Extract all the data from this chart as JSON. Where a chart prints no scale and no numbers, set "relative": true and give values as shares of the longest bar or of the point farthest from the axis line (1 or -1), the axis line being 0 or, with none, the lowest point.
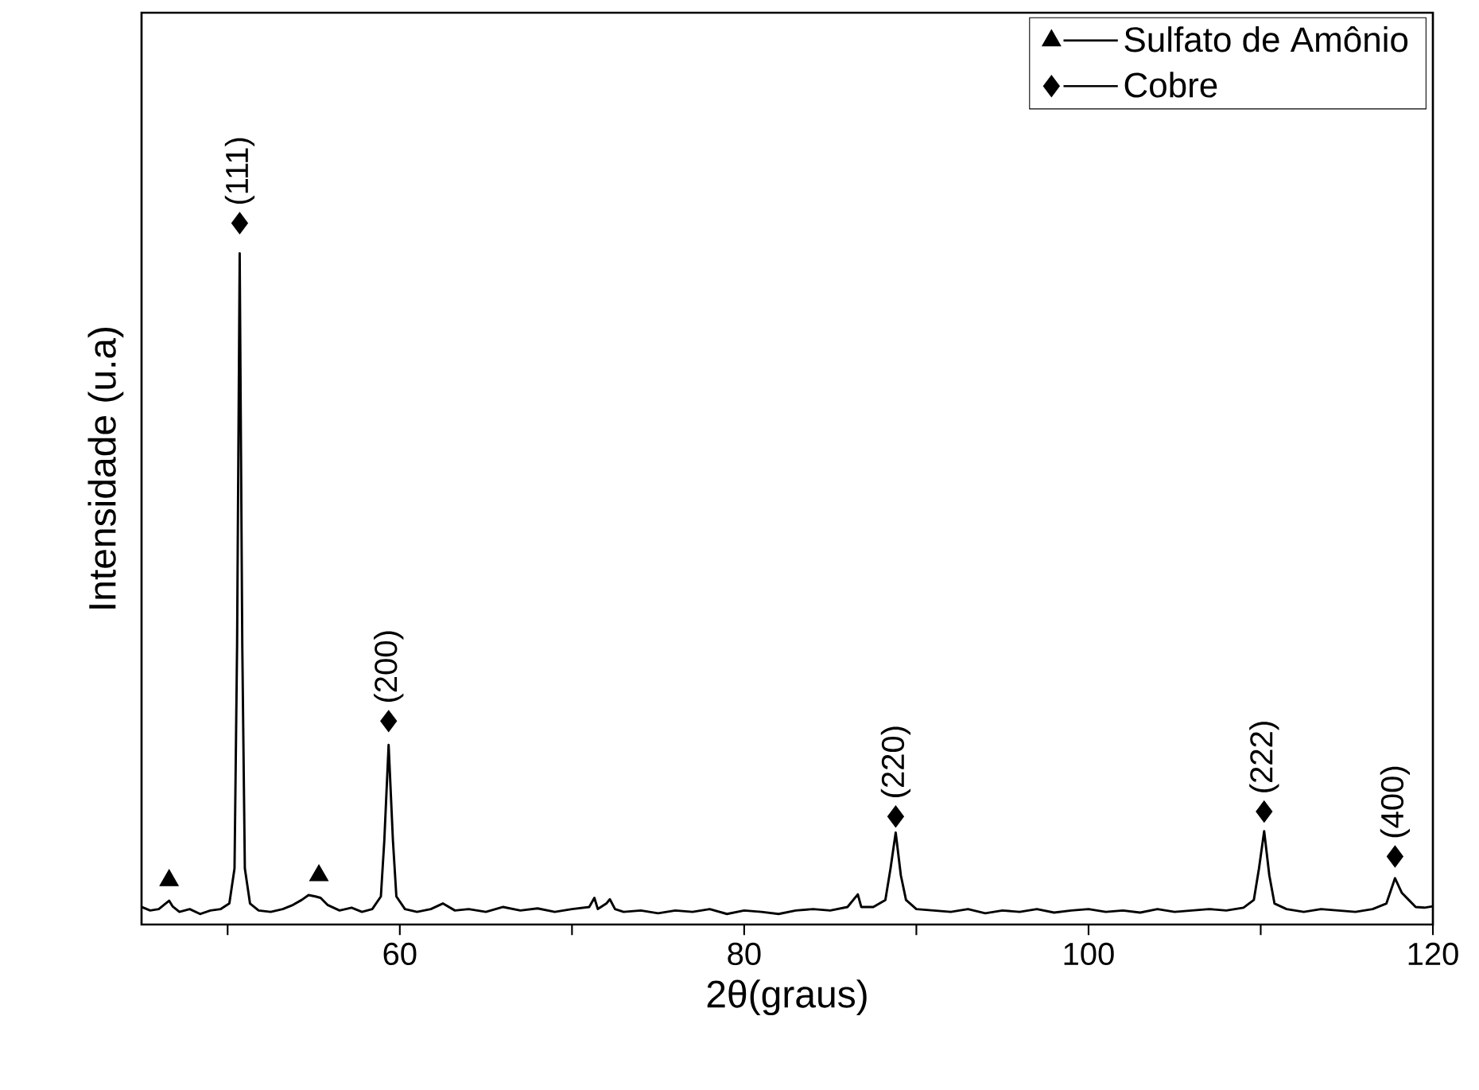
{
  "chart_data": {
    "type": "line",
    "xlabel": "2θ(graus)",
    "ylabel": "Intensidade (u.a)",
    "relative": true,
    "xlim": [
      45,
      120
    ],
    "xticks": [
      {
        "value": 50,
        "label": null
      },
      60,
      {
        "value": 70,
        "label": null
      },
      80,
      {
        "value": 90,
        "label": null
      },
      100,
      {
        "value": 110,
        "label": null
      },
      120
    ],
    "legend": "top right",
    "series": [
      {
        "color": "#000000",
        "marker": "none",
        "x": [
          45,
          45.5,
          46,
          46.4,
          46.6,
          46.8,
          47.2,
          47.8,
          48.4,
          49,
          49.6,
          50.1,
          50.4,
          50.55,
          50.7,
          50.85,
          51.0,
          51.3,
          51.8,
          52.5,
          53.2,
          53.8,
          54.3,
          54.7,
          55.1,
          55.4,
          55.8,
          56.5,
          57.2,
          57.8,
          58.4,
          58.9,
          59.1,
          59.35,
          59.6,
          59.8,
          60.3,
          61,
          61.8,
          62.5,
          63.2,
          64,
          65,
          66,
          67,
          68,
          69,
          70,
          71,
          71.3,
          71.5,
          72,
          72.2,
          72.5,
          73,
          74,
          75,
          76,
          77,
          78,
          79,
          80,
          81,
          82,
          83,
          84,
          85,
          86,
          86.6,
          86.8,
          87.5,
          88.2,
          88.5,
          88.8,
          89.1,
          89.4,
          90,
          91,
          92,
          93,
          94,
          95,
          96,
          97,
          98,
          99,
          100,
          101,
          102,
          103,
          104,
          105,
          106,
          107,
          108,
          109,
          109.6,
          109.9,
          110.2,
          110.5,
          110.8,
          111.5,
          112.5,
          113.5,
          114.5,
          115.5,
          116.5,
          117.3,
          117.8,
          118.2,
          118.6,
          119,
          119.5,
          120
        ],
        "values": [
          0.025,
          0.02,
          0.022,
          0.03,
          0.034,
          0.026,
          0.018,
          0.022,
          0.015,
          0.02,
          0.022,
          0.03,
          0.08,
          0.4,
          0.957,
          0.4,
          0.08,
          0.03,
          0.02,
          0.018,
          0.022,
          0.028,
          0.035,
          0.042,
          0.04,
          0.038,
          0.028,
          0.02,
          0.024,
          0.018,
          0.022,
          0.04,
          0.12,
          0.256,
          0.12,
          0.04,
          0.022,
          0.018,
          0.022,
          0.03,
          0.02,
          0.022,
          0.018,
          0.025,
          0.02,
          0.023,
          0.018,
          0.022,
          0.025,
          0.038,
          0.022,
          0.03,
          0.036,
          0.022,
          0.018,
          0.02,
          0.016,
          0.02,
          0.018,
          0.022,
          0.015,
          0.02,
          0.018,
          0.015,
          0.02,
          0.022,
          0.02,
          0.025,
          0.043,
          0.025,
          0.025,
          0.035,
          0.08,
          0.131,
          0.07,
          0.035,
          0.022,
          0.02,
          0.018,
          0.022,
          0.016,
          0.02,
          0.018,
          0.022,
          0.017,
          0.02,
          0.022,
          0.018,
          0.02,
          0.017,
          0.022,
          0.018,
          0.02,
          0.022,
          0.02,
          0.024,
          0.035,
          0.08,
          0.133,
          0.07,
          0.03,
          0.022,
          0.018,
          0.022,
          0.02,
          0.018,
          0.022,
          0.03,
          0.066,
          0.045,
          0.035,
          0.025,
          0.024,
          0.026
        ]
      },
      {
        "type": "scatter",
        "name": "Sulfato de Amônio",
        "color": "#000000",
        "marker": "triangle",
        "x": [
          46.6,
          55.3
        ],
        "values": [
          0.063,
          0.07
        ]
      },
      {
        "type": "scatter",
        "name": "Cobre",
        "color": "#000000",
        "marker": "diamond",
        "x": [
          50.7,
          59.35,
          88.8,
          110.2,
          117.8
        ],
        "values": [
          1,
          0.29,
          0.154,
          0.161,
          0.097
        ]
      }
    ],
    "annotations": [
      {
        "text": "(111)",
        "x": 50.7,
        "y": 1
      },
      {
        "text": "(200)",
        "x": 59.35,
        "y": 0.29
      },
      {
        "text": "(220)",
        "x": 88.8,
        "y": 0.154
      },
      {
        "text": "(222)",
        "x": 110.2,
        "y": 0.161
      },
      {
        "text": "(400)",
        "x": 117.8,
        "y": 0.097
      }
    ]
  }
}
